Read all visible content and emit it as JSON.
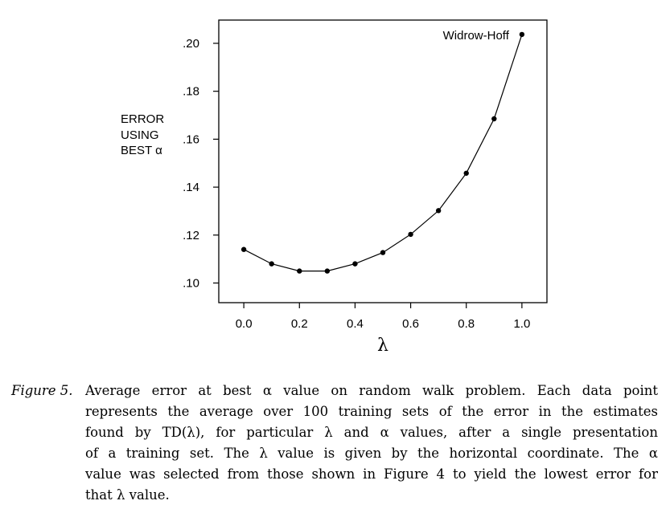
{
  "chart_data": {
    "type": "line",
    "ylabel_lines": [
      "ERROR",
      "USING",
      "BEST α"
    ],
    "xlabel": "λ",
    "x": [
      0.0,
      0.1,
      0.2,
      0.3,
      0.4,
      0.5,
      0.6,
      0.7,
      0.8,
      0.9,
      1.0
    ],
    "y": [
      0.114,
      0.108,
      0.105,
      0.105,
      0.108,
      0.1127,
      0.1203,
      0.1302,
      0.1458,
      0.1685,
      0.2037
    ],
    "x_ticks": [
      "0.0",
      "0.2",
      "0.4",
      "0.6",
      "0.8",
      "1.0"
    ],
    "x_tick_values": [
      0.0,
      0.2,
      0.4,
      0.6,
      0.8,
      1.0
    ],
    "y_ticks": [
      ".10",
      ".12",
      ".14",
      ".16",
      ".18",
      ".20"
    ],
    "y_tick_values": [
      0.1,
      0.12,
      0.14,
      0.16,
      0.18,
      0.2
    ],
    "xlim": [
      -0.09,
      1.09
    ],
    "ylim": [
      0.0918,
      0.2097
    ],
    "annotation": {
      "text": "Widrow-Hoff",
      "x": 1.0,
      "y": 0.2037
    },
    "grid": false
  },
  "caption": {
    "label": "Figure 5.",
    "lines": [
      "Average error at best α value on random walk problem. Each data point",
      "represents the average over 100 training sets of the error in the estimates",
      "found by TD(λ), for particular λ and α values, after a single presentation",
      "of a training set. The λ value is given by the horizontal coordinate. The α",
      "value was selected from those shown in Figure 4 to yield the lowest error for",
      "that λ value."
    ]
  }
}
